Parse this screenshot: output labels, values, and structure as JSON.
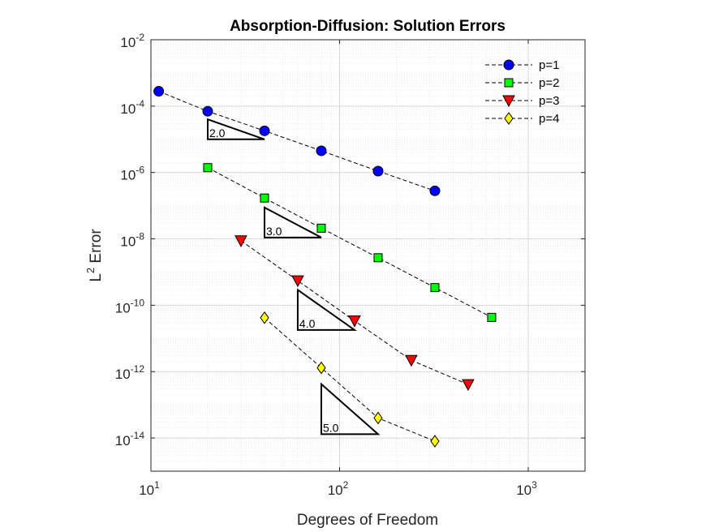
{
  "chart_data": {
    "type": "scatter",
    "title": "Absorption-Diffusion: Solution Errors",
    "xlabel": "Degrees of Freedom",
    "ylabel": "L",
    "ylabel_superscript": "2",
    "ylabel_suffix": " Error",
    "xscale": "log",
    "yscale": "log",
    "xlim": [
      10,
      2000
    ],
    "ylim": [
      1e-15,
      0.01
    ],
    "x_ticks": [
      {
        "value": 10,
        "base": "10",
        "exp": "1"
      },
      {
        "value": 100,
        "base": "10",
        "exp": "2"
      },
      {
        "value": 1000,
        "base": "10",
        "exp": "3"
      }
    ],
    "y_ticks": [
      {
        "value": 1e-14,
        "base": "10",
        "exp": "-14"
      },
      {
        "value": 1e-12,
        "base": "10",
        "exp": "-12"
      },
      {
        "value": 1e-10,
        "base": "10",
        "exp": "-10"
      },
      {
        "value": 1e-08,
        "base": "10",
        "exp": "-8"
      },
      {
        "value": 1e-06,
        "base": "10",
        "exp": "-6"
      },
      {
        "value": 0.0001,
        "base": "10",
        "exp": "-4"
      },
      {
        "value": 0.01,
        "base": "10",
        "exp": "-2"
      }
    ],
    "grid": true,
    "minor_grid": true,
    "legend_position": "top-right",
    "series": [
      {
        "name": "p=1",
        "marker": "circle",
        "color": "#0000ff",
        "x": [
          11,
          20,
          40,
          80,
          160,
          320
        ],
        "y": [
          0.00028,
          7e-05,
          1.8e-05,
          4.5e-06,
          1.1e-06,
          2.8e-07
        ]
      },
      {
        "name": "p=2",
        "marker": "square",
        "color": "#00ff00",
        "x": [
          20,
          40,
          80,
          160,
          320,
          640
        ],
        "y": [
          1.4e-06,
          1.7e-07,
          2.1e-08,
          2.7e-09,
          3.4e-10,
          4.3e-11
        ]
      },
      {
        "name": "p=3",
        "marker": "triangle-down",
        "color": "#ff0000",
        "x": [
          30,
          60,
          120,
          240,
          480
        ],
        "y": [
          8.8e-09,
          5.5e-10,
          3.4e-11,
          2.2e-12,
          4.1e-13
        ]
      },
      {
        "name": "p=4",
        "marker": "diamond",
        "color": "#ffff00",
        "x": [
          40,
          80,
          160,
          320
        ],
        "y": [
          4.2e-11,
          1.3e-12,
          4e-14,
          8e-15
        ]
      }
    ],
    "slope_triangles": [
      {
        "label": "2.0",
        "x1": 20,
        "x2": 40,
        "y_base": 1e-05,
        "y_top": 4e-05
      },
      {
        "label": "3.0",
        "x1": 40,
        "x2": 80,
        "y_base": 1.1e-08,
        "y_top": 8.8e-08
      },
      {
        "label": "4.0",
        "x1": 60,
        "x2": 120,
        "y_base": 1.8e-11,
        "y_top": 2.9e-10
      },
      {
        "label": "5.0",
        "x1": 80,
        "x2": 160,
        "y_base": 1.3e-14,
        "y_top": 4.2e-13
      }
    ]
  }
}
